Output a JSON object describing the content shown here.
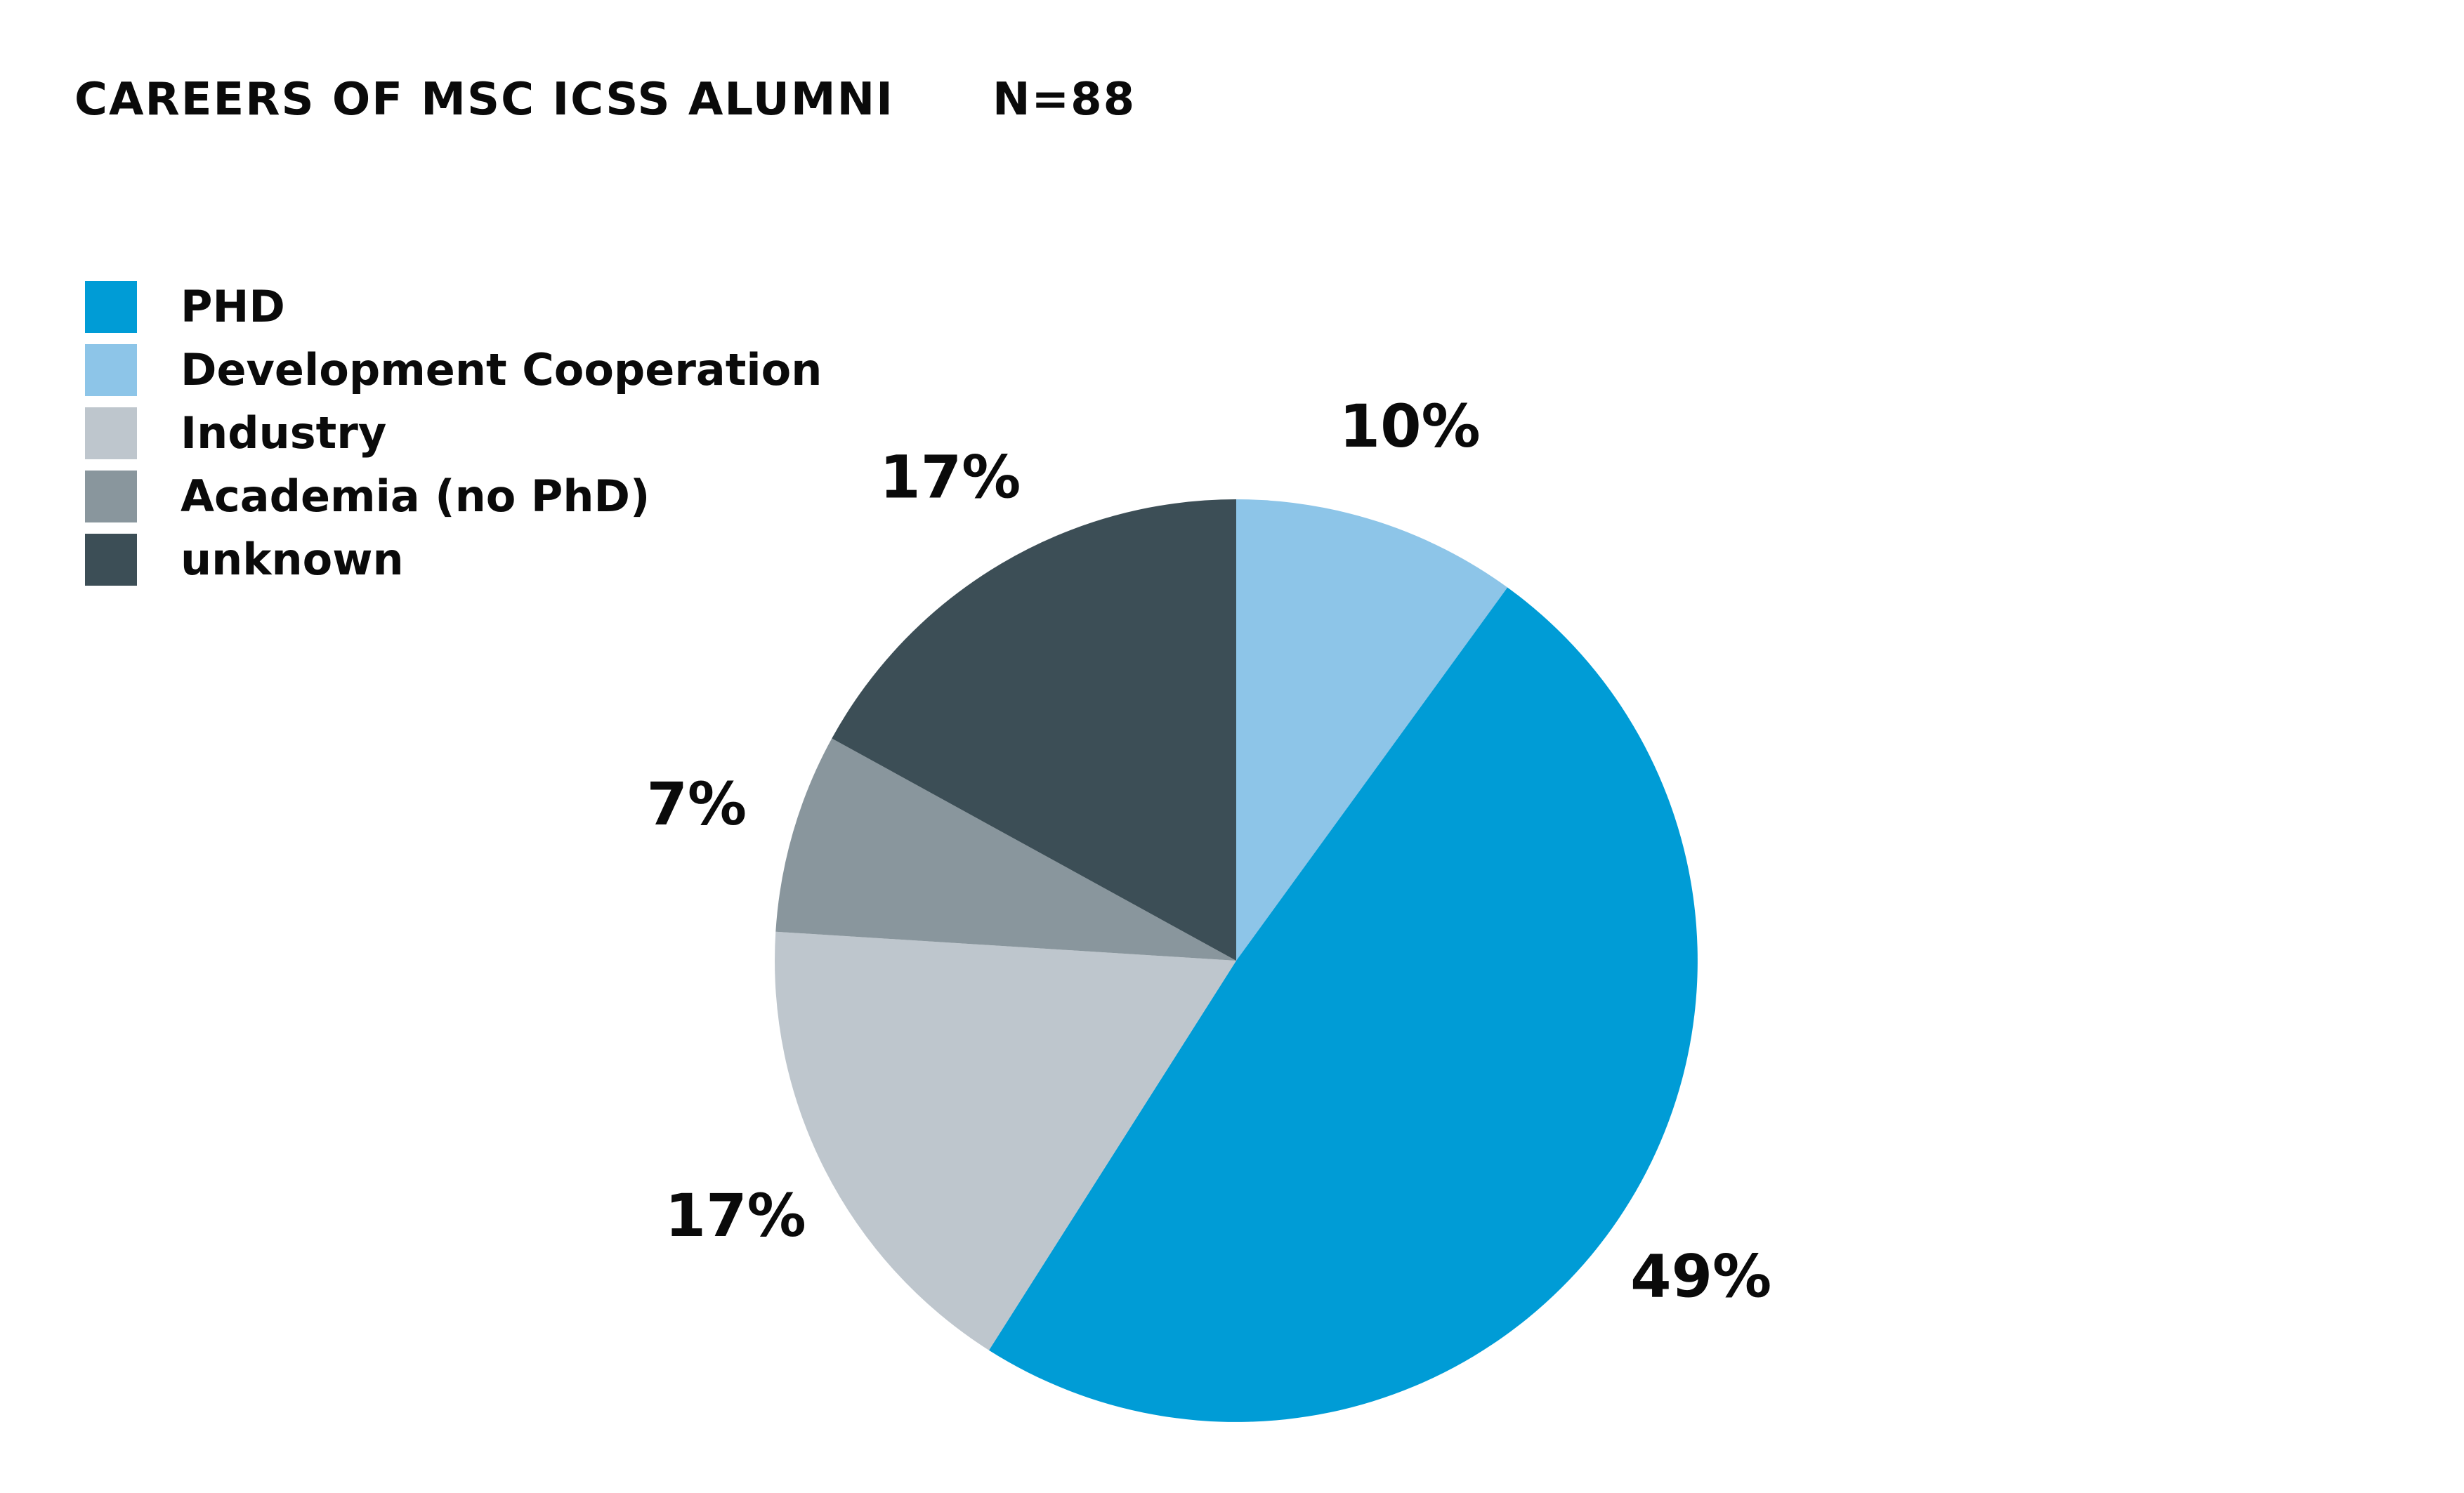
{
  "header": {
    "title": "CAREERS OF MSC ICSS ALUMNI",
    "n_label": "N=88"
  },
  "chart_data": {
    "type": "pie",
    "title": "CAREERS OF MSC ICSS ALUMNI",
    "subtitle": "N=88",
    "legend_position": "top-left",
    "slices": [
      {
        "label": "PHD",
        "value": 49,
        "value_label": "49%",
        "color": "#009cd6"
      },
      {
        "label": "Development Cooperation",
        "value": 10,
        "value_label": "10%",
        "color": "#8dc5e8"
      },
      {
        "label": "Industry",
        "value": 17,
        "value_label": "17%",
        "color": "#bec6cd"
      },
      {
        "label": "Academia (no PhD)",
        "value": 7,
        "value_label": "7%",
        "color": "#89969d"
      },
      {
        "label": "unknown",
        "value": 17,
        "value_label": "17%",
        "color": "#3c4e56"
      }
    ],
    "draw_order_clockwise_from_top": [
      "Development Cooperation",
      "PHD",
      "Industry",
      "Academia (no PhD)",
      "unknown"
    ]
  }
}
